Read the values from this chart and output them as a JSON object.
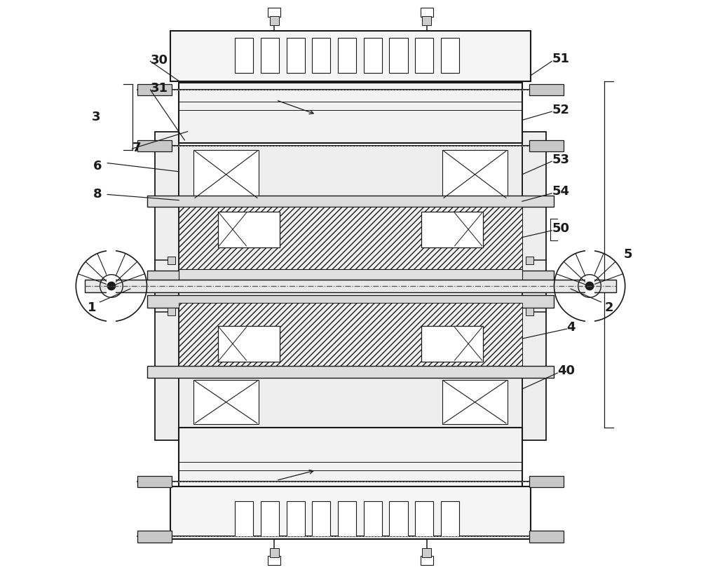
{
  "bg_color": "#ffffff",
  "line_color": "#1a1a1a",
  "label_color": "#1a1a1a",
  "fs": 13
}
